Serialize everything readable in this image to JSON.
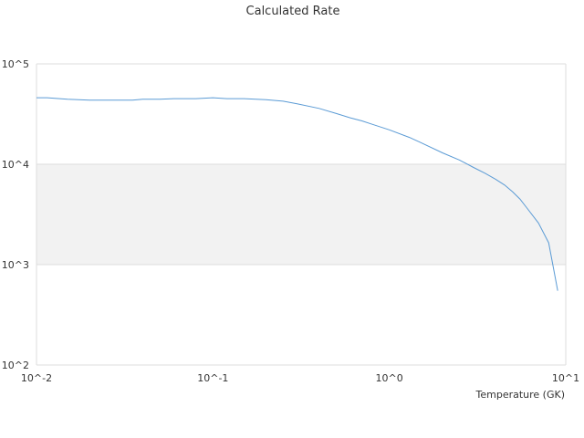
{
  "chart_data": {
    "type": "line",
    "title": "Calculated Rate",
    "xlabel": "Temperature (GK)",
    "ylabel": "",
    "xscale": "log",
    "yscale": "log",
    "xlim": [
      0.01,
      10
    ],
    "ylim": [
      100,
      100000
    ],
    "x_ticks": [
      "10^-2",
      "10^-1",
      "10^0",
      "10^1"
    ],
    "y_ticks": [
      "10^2",
      "10^3",
      "10^4",
      "10^5"
    ],
    "grid": "horizontal",
    "shaded_band": [
      1000,
      10000
    ],
    "series": [
      {
        "color": "#5b9bd5",
        "x": [
          0.01,
          0.0115,
          0.015,
          0.02,
          0.025,
          0.035,
          0.04,
          0.05,
          0.06,
          0.08,
          0.1,
          0.12,
          0.15,
          0.2,
          0.25,
          0.3,
          0.4,
          0.5,
          0.6,
          0.7,
          0.8,
          1.0,
          1.3,
          1.5,
          2.0,
          2.5,
          3.0,
          3.5,
          4.0,
          4.5,
          5.0,
          5.5,
          6.0,
          7.0,
          8.0,
          9.0
        ],
        "y": [
          46000,
          46000,
          44500,
          43500,
          43500,
          43500,
          44500,
          44500,
          45000,
          45000,
          46000,
          45000,
          45000,
          44000,
          42500,
          40000,
          36000,
          32000,
          29000,
          27000,
          25000,
          22000,
          18500,
          16500,
          13000,
          11000,
          9300,
          8100,
          7100,
          6200,
          5300,
          4500,
          3700,
          2600,
          1650,
          550
        ]
      }
    ]
  }
}
